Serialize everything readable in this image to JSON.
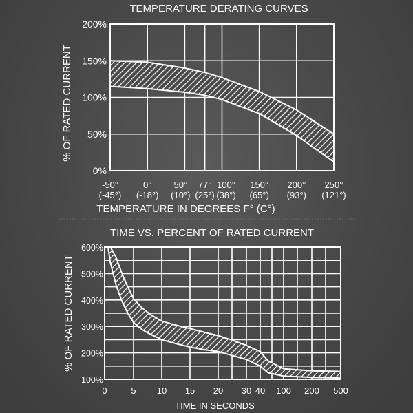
{
  "chart_data": [
    {
      "type": "area",
      "title": "TEMPERATURE DERATING CURVES",
      "xlabel": "TEMPERATURE IN DEGREES F° (C°)",
      "ylabel": "% OF RATED CURRENT",
      "xlim": [
        -50,
        250
      ],
      "ylim": [
        0,
        200
      ],
      "grid": true,
      "x_ticks": [
        {
          "value": -50,
          "line1": "-50°",
          "line2": "(-45°)"
        },
        {
          "value": 0,
          "line1": "0°",
          "line2": "(-18°)"
        },
        {
          "value": 50,
          "line1": "50°",
          "line2": "(10°)"
        },
        {
          "value": 77,
          "line1": "77°",
          "line2": "(25°)"
        },
        {
          "value": 100,
          "line1": "100°",
          "line2": "(38°)"
        },
        {
          "value": 150,
          "line1": "150°",
          "line2": "(65°)"
        },
        {
          "value": 200,
          "line1": "200°",
          "line2": "(93°)"
        },
        {
          "value": 250,
          "line1": "250°",
          "line2": "(121°)"
        }
      ],
      "y_ticks": [
        {
          "value": 0,
          "label": "0%"
        },
        {
          "value": 50,
          "label": "50%"
        },
        {
          "value": 100,
          "label": "100%"
        },
        {
          "value": 150,
          "label": "150%"
        },
        {
          "value": 200,
          "label": "200%"
        }
      ],
      "series": [
        {
          "x": [
            -50,
            0,
            50,
            77,
            100,
            150,
            200,
            250
          ],
          "upper": [
            150,
            148,
            140,
            134,
            127,
            108,
            83,
            50
          ],
          "lower": [
            115,
            112,
            107,
            103,
            97,
            78,
            48,
            12
          ]
        }
      ]
    },
    {
      "type": "area",
      "title": "TIME VS. PERCENT OF RATED CURRENT",
      "xlabel": "TIME IN SECONDS",
      "ylabel": "% OF RATED CURRENT",
      "ylim": [
        100,
        600
      ],
      "grid": true,
      "x_ticks": [
        "0",
        "5",
        "10",
        "15",
        "20",
        "30",
        "40",
        "100",
        "200",
        "500"
      ],
      "y_ticks": [
        {
          "value": 100,
          "label": "100%"
        },
        {
          "value": 200,
          "label": "200%"
        },
        {
          "value": 300,
          "label": "300%"
        },
        {
          "value": 400,
          "label": "400%"
        },
        {
          "value": 500,
          "label": "500%"
        },
        {
          "value": 600,
          "label": "600%"
        }
      ],
      "series": [
        {
          "x": [
            0.6,
            1,
            2,
            3,
            4,
            5,
            6.5,
            8,
            10,
            12.5,
            15,
            17.5,
            20,
            25,
            30,
            40,
            60,
            100,
            200,
            500
          ],
          "upper": [
            600,
            600,
            560,
            500,
            450,
            405,
            370,
            345,
            320,
            305,
            292,
            278,
            265,
            248,
            228,
            205,
            170,
            140,
            132,
            130
          ],
          "lower": [
            600,
            540,
            455,
            395,
            350,
            315,
            288,
            270,
            250,
            235,
            222,
            212,
            205,
            190,
            175,
            150,
            125,
            112,
            107,
            105
          ]
        }
      ]
    }
  ]
}
